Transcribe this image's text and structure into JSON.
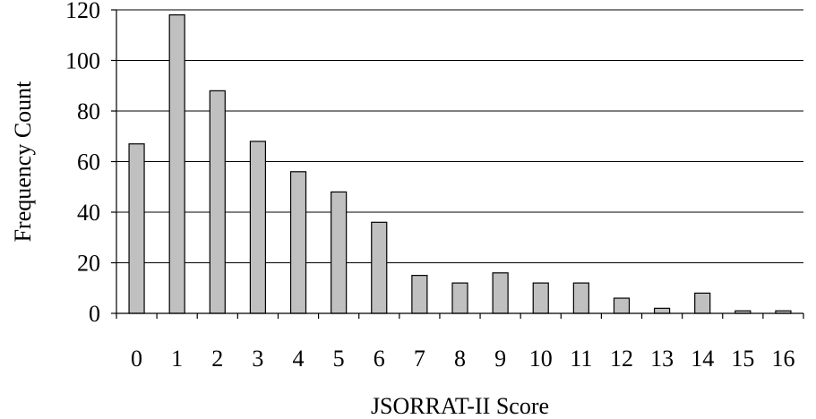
{
  "chart_data": {
    "type": "bar",
    "categories": [
      "0",
      "1",
      "2",
      "3",
      "4",
      "5",
      "6",
      "7",
      "8",
      "9",
      "10",
      "11",
      "12",
      "13",
      "14",
      "15",
      "16"
    ],
    "series": [
      {
        "values": [
          67,
          118,
          88,
          68,
          56,
          48,
          36,
          15,
          12,
          16,
          12,
          12,
          6,
          2,
          8,
          1,
          1
        ]
      }
    ],
    "xlabel": "JSORRAT-II Score",
    "ylabel": "Frequency Count",
    "ylim": [
      0,
      120
    ],
    "yticks": [
      0,
      20,
      40,
      60,
      80,
      100,
      120
    ],
    "grid": true,
    "legend": "none",
    "bar_color": "#c0c0c0",
    "bar_stroke": "#000000",
    "grid_color": "#000000"
  }
}
